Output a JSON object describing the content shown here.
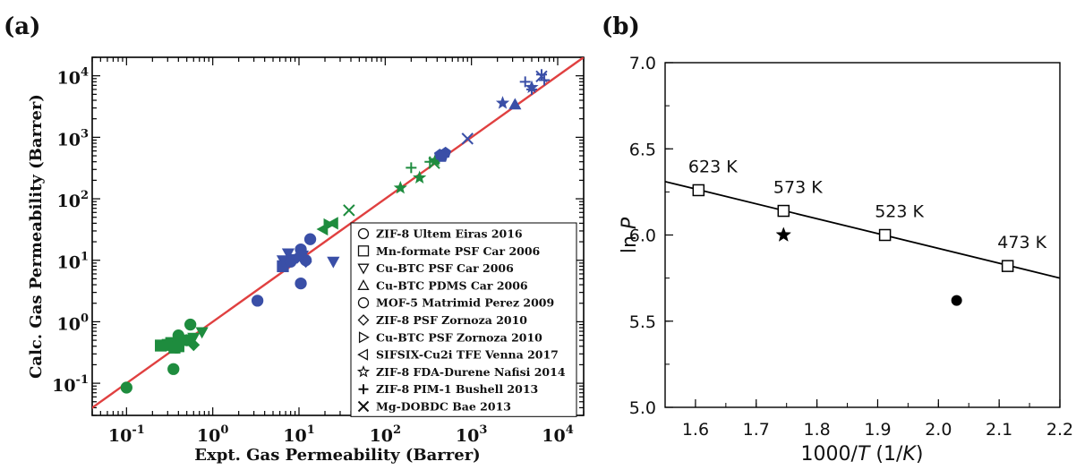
{
  "chart_data": [
    {
      "panel_label": "(a)",
      "type": "scatter",
      "xlabel": "Expt. Gas Permeability (Barrer)",
      "ylabel": "Calc. Gas Permeability (Barrer)",
      "xscale": "log",
      "yscale": "log",
      "xlim": [
        0.04,
        20000
      ],
      "ylim": [
        0.03,
        20000
      ],
      "x_tick_labels": [
        "10^-1",
        "10^0",
        "10^1",
        "10^2",
        "10^3",
        "10^4"
      ],
      "y_tick_labels": [
        "10^-1",
        "10^0",
        "10^1",
        "10^2",
        "10^3",
        "10^4"
      ],
      "legend_position": "lower-right",
      "colors": {
        "blue": "#3a4fa7",
        "green": "#1e8c3e",
        "parity_line": "#e04040"
      },
      "parity_line": {
        "x": [
          0.03,
          20000
        ],
        "y": [
          0.03,
          20000
        ]
      },
      "series": [
        {
          "name": "ZIF-8 Ultem Eiras 2016",
          "marker": "circle",
          "color": "#3a4fa7",
          "x": [
            3.3,
            10.5,
            10.5,
            13.5,
            12.0
          ],
          "y": [
            2.2,
            4.2,
            15.0,
            22.0,
            10.0
          ]
        },
        {
          "name": "ZIF-8 Ultem Eiras 2016",
          "marker": "circle",
          "color": "#1e8c3e",
          "x": [
            0.1,
            0.35,
            0.4,
            0.5,
            0.55,
            0.38
          ],
          "y": [
            0.085,
            0.17,
            0.6,
            0.5,
            0.9,
            0.38
          ]
        },
        {
          "name": "Mn-formate PSF Car 2006",
          "marker": "square",
          "color": "#1e8c3e",
          "x": [
            0.25,
            0.3,
            0.33,
            0.36,
            0.4
          ],
          "y": [
            0.41,
            0.42,
            0.45,
            0.38,
            0.4
          ]
        },
        {
          "name": "Mn-formate PSF Car 2006",
          "marker": "square",
          "color": "#3a4fa7",
          "x": [
            6.5
          ],
          "y": [
            8.0
          ]
        },
        {
          "name": "Cu-BTC PSF Car 2006",
          "marker": "triangle-down",
          "color": "#3a4fa7",
          "x": [
            7.5,
            9.0,
            25.0,
            6.5,
            11.0
          ],
          "y": [
            13.0,
            10.5,
            9.5,
            10.0,
            12.0
          ]
        },
        {
          "name": "Cu-BTC PSF Car 2006",
          "marker": "triangle-down",
          "color": "#1e8c3e",
          "x": [
            0.75,
            0.6
          ],
          "y": [
            0.68,
            0.55
          ]
        },
        {
          "name": "Cu-BTC PDMS Car 2006",
          "marker": "triangle-up",
          "color": "#3a4fa7",
          "x": [
            3200
          ],
          "y": [
            3400
          ]
        },
        {
          "name": "MOF-5 Matrimid Perez 2009",
          "marker": "circle",
          "color": "#3a4fa7",
          "x": [
            8.0
          ],
          "y": [
            9.5
          ]
        },
        {
          "name": "ZIF-8 PSF Zornoza 2010",
          "marker": "diamond",
          "color": "#3a4fa7",
          "x": [
            9.5,
            12.0
          ],
          "y": [
            11.0,
            9.5
          ]
        },
        {
          "name": "ZIF-8 PSF Zornoza 2010",
          "marker": "diamond",
          "color": "#1e8c3e",
          "x": [
            0.6
          ],
          "y": [
            0.42
          ]
        },
        {
          "name": "Cu-BTC PSF Zornoza 2010",
          "marker": "triangle-right",
          "color": "#1e8c3e",
          "x": [
            22.0
          ],
          "y": [
            38.0
          ]
        },
        {
          "name": "SIFSIX-Cu2i TFE Venna 2017",
          "marker": "triangle-left",
          "color": "#1e8c3e",
          "x": [
            19.0,
            25.0
          ],
          "y": [
            32.0,
            40.0
          ]
        },
        {
          "name": "ZIF-8 FDA-Durene Nafisi 2014",
          "marker": "star",
          "color": "#1e8c3e",
          "x": [
            150,
            250,
            380
          ],
          "y": [
            150,
            220,
            420
          ]
        },
        {
          "name": "ZIF-8 FDA-Durene Nafisi 2014",
          "marker": "star",
          "color": "#3a4fa7",
          "x": [
            2300,
            5000
          ],
          "y": [
            3600,
            6500
          ]
        },
        {
          "name": "ZIF-8 PIM-1 Bushell 2013",
          "marker": "plus",
          "color": "#1e8c3e",
          "x": [
            200,
            330,
            420
          ],
          "y": [
            320,
            400,
            450
          ]
        },
        {
          "name": "ZIF-8 PIM-1 Bushell 2013",
          "marker": "plus",
          "color": "#3a4fa7",
          "x": [
            4200,
            5000,
            6500,
            7000
          ],
          "y": [
            8000,
            6000,
            10500,
            8500
          ]
        },
        {
          "name": "Mg-DOBDC Bae 2013",
          "marker": "x",
          "color": "#1e8c3e",
          "x": [
            38.0,
            370
          ],
          "y": [
            65.0,
            380
          ]
        },
        {
          "name": "Mg-DOBDC Bae 2013",
          "marker": "x",
          "color": "#3a4fa7",
          "x": [
            900,
            6500
          ],
          "y": [
            950,
            9800
          ]
        },
        {
          "name": "",
          "marker": "pentagon",
          "color": "#3a4fa7",
          "x": [
            460,
            500,
            430
          ],
          "y": [
            480,
            560,
            520
          ]
        }
      ],
      "legend": [
        {
          "label": "ZIF-8 Ultem Eiras 2016",
          "marker": "circle"
        },
        {
          "label": "Mn-formate PSF Car 2006",
          "marker": "square"
        },
        {
          "label": "Cu-BTC PSF Car 2006",
          "marker": "triangle-down"
        },
        {
          "label": "Cu-BTC PDMS Car 2006",
          "marker": "triangle-up"
        },
        {
          "label": "MOF-5 Matrimid Perez 2009",
          "marker": "circle"
        },
        {
          "label": "ZIF-8 PSF Zornoza 2010",
          "marker": "diamond"
        },
        {
          "label": "Cu-BTC PSF Zornoza 2010",
          "marker": "triangle-right"
        },
        {
          "label": "SIFSIX-Cu2i TFE Venna 2017",
          "marker": "triangle-left"
        },
        {
          "label": "ZIF-8 FDA-Durene Nafisi 2014",
          "marker": "star"
        },
        {
          "label": "ZIF-8 PIM-1 Bushell 2013",
          "marker": "plus"
        },
        {
          "label": "Mg-DOBDC Bae 2013",
          "marker": "x"
        }
      ]
    },
    {
      "panel_label": "(b)",
      "type": "scatter",
      "xlabel_parts": [
        "1000/",
        "T",
        " (1/",
        "K",
        ")"
      ],
      "ylabel_parts": [
        "ln ",
        "P"
      ],
      "xlim": [
        1.55,
        2.2
      ],
      "ylim": [
        5.0,
        7.0
      ],
      "x_ticks": [
        1.6,
        1.7,
        1.8,
        1.9,
        2.0,
        2.1,
        2.2
      ],
      "x_tick_labels": [
        "1.6",
        "1.7",
        "1.8",
        "1.9",
        "2.0",
        "2.1",
        "2.2"
      ],
      "y_ticks": [
        5.0,
        5.5,
        6.0,
        6.5,
        7.0
      ],
      "y_tick_labels": [
        "5.0",
        "5.5",
        "6.0",
        "6.5",
        "7.0"
      ],
      "fit_line": {
        "x": [
          1.55,
          2.2
        ],
        "y": [
          6.31,
          5.75
        ]
      },
      "series": [
        {
          "name": "",
          "marker": "open-square",
          "x": [
            1.605,
            1.745,
            1.912,
            2.114
          ],
          "y": [
            6.26,
            6.14,
            6.0,
            5.82
          ],
          "point_labels": [
            "623 K",
            "573 K",
            "523 K",
            "473 K"
          ]
        },
        {
          "name": "",
          "marker": "star",
          "x": [
            1.745
          ],
          "y": [
            6.0
          ]
        },
        {
          "name": "",
          "marker": "filled-circle",
          "x": [
            2.03
          ],
          "y": [
            5.62
          ]
        }
      ]
    }
  ]
}
